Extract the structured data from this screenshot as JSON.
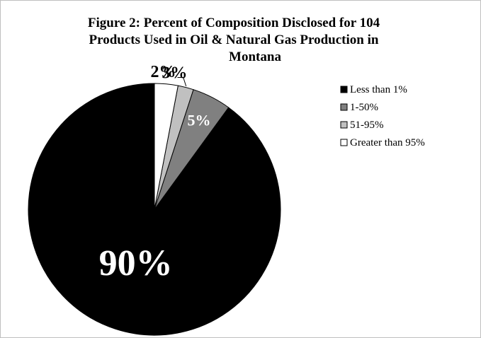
{
  "chart_data": {
    "type": "pie",
    "title_lines": [
      "Figure 2: Percent of Composition Disclosed for 104",
      "Products Used in Oil & Natural Gas Production in",
      "Montana"
    ],
    "categories": [
      "Less than 1%",
      "1-50%",
      "51-95%",
      "Greater than 95%"
    ],
    "values": [
      90,
      5,
      2,
      3
    ],
    "data_labels": [
      "90%",
      "5%",
      "2%",
      "3%"
    ],
    "colors": [
      "#000000",
      "#808080",
      "#c0c0c0",
      "#ffffff"
    ],
    "legend_position": "right",
    "start_angle": "12 o'clock",
    "direction": "counterclockwise"
  }
}
